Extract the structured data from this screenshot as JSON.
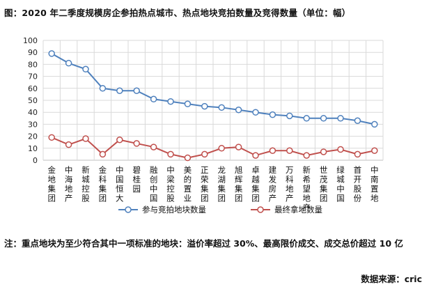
{
  "title": "图：2020 年二季度规模房企参拍热点城市、热点地块竞拍数量及竞得数量（单位：幅）",
  "chart_data": {
    "type": "line",
    "categories": [
      "金地集团",
      "中海地产",
      "新城控股",
      "金科集团",
      "中国恒大",
      "碧桂园",
      "融创中国",
      "中梁控股",
      "美的置业",
      "正荣集团",
      "龙湖集团",
      "旭辉集团",
      "卓越集团",
      "建发房产",
      "万科地产",
      "新希望地产",
      "世茂集团",
      "绿城中国",
      "首开股份",
      "中南置地"
    ],
    "series": [
      {
        "name": "参与竞拍地块数量",
        "color": "#4f81bd",
        "values": [
          89,
          81,
          76,
          60,
          58,
          58,
          51,
          49,
          47,
          45,
          44,
          42,
          40,
          38,
          37,
          35,
          35,
          35,
          33,
          30
        ]
      },
      {
        "name": "最终拿地数量",
        "color": "#c0504d",
        "values": [
          19,
          13,
          18,
          5,
          17,
          14,
          11,
          5,
          2,
          5,
          10,
          11,
          4,
          8,
          8,
          4,
          7,
          9,
          5,
          8
        ]
      }
    ],
    "ylim": [
      0,
      100
    ],
    "yticks": [
      0,
      10,
      20,
      30,
      40,
      50,
      60,
      70,
      80,
      90,
      100
    ],
    "grid": true,
    "legend_position": "bottom"
  },
  "note": "注：重点地块为至少符合其中一项标准的地块：溢价率超过 30%、最高限价成交、成交总价超过 10 亿",
  "source": "数据来源：cric"
}
